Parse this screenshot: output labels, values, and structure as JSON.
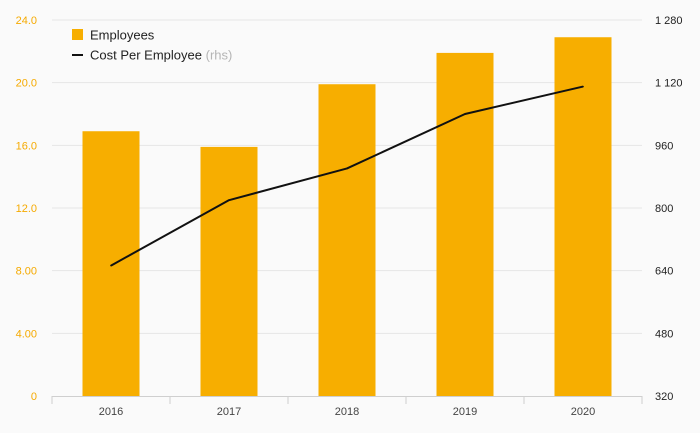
{
  "chart_data": {
    "type": "bar",
    "categories": [
      "2016",
      "2017",
      "2018",
      "2019",
      "2020"
    ],
    "series": [
      {
        "name": "Employees",
        "type": "bar",
        "axis": "left",
        "values": [
          16.9,
          15.9,
          19.9,
          21.9,
          22.9
        ]
      },
      {
        "name": "Cost Per Employee",
        "type": "line",
        "axis": "right",
        "values": [
          653,
          820,
          901,
          1040,
          1110
        ]
      }
    ],
    "legend": [
      {
        "label": "Employees",
        "note": ""
      },
      {
        "label": "Cost Per Employee",
        "note": "(rhs)"
      }
    ],
    "legend_position": "top-left",
    "left_axis": {
      "ylim": [
        0,
        24
      ],
      "ticks": [
        0,
        4,
        8,
        12,
        16,
        20,
        24
      ],
      "tick_labels": [
        "0",
        "4.00",
        "8.00",
        "12.0",
        "16.0",
        "20.0",
        "24.0"
      ]
    },
    "right_axis": {
      "ylim": [
        320,
        1280
      ],
      "ticks": [
        320,
        480,
        640,
        800,
        960,
        1120,
        1280
      ],
      "tick_labels": [
        "320",
        "480",
        "640",
        "800",
        "960",
        "1 120",
        "1 280"
      ]
    },
    "grid": true,
    "colors": {
      "bar": "#f7ae00",
      "line": "#111111",
      "grid": "#e6e6e6",
      "left_tick": "#f5aa00",
      "right_tick": "#222222"
    }
  }
}
